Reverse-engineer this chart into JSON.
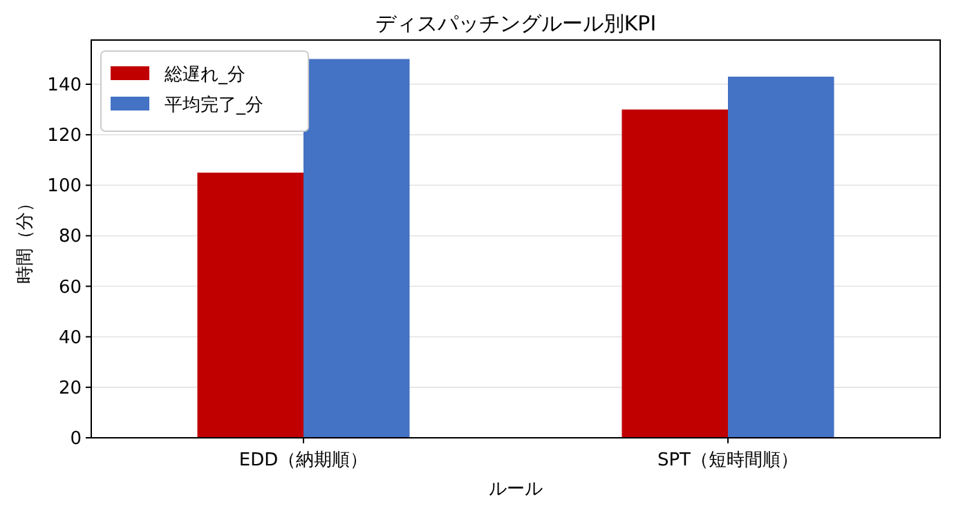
{
  "chart_data": {
    "type": "bar",
    "title": "ディスパッチングルール別KPI",
    "xlabel": "ルール",
    "ylabel": "時間（分）",
    "categories": [
      "EDD（納期順）",
      "SPT（短時間順）"
    ],
    "series": [
      {
        "name": "総遅れ_分",
        "color": "#c00000",
        "values": [
          105,
          130
        ]
      },
      {
        "name": "平均完了_分",
        "color": "#4472c4",
        "values": [
          150,
          143
        ]
      }
    ],
    "ylim": [
      0,
      157.5
    ],
    "yticks": [
      0,
      20,
      40,
      60,
      80,
      100,
      120,
      140
    ],
    "grid": "y",
    "legend": "top left"
  }
}
